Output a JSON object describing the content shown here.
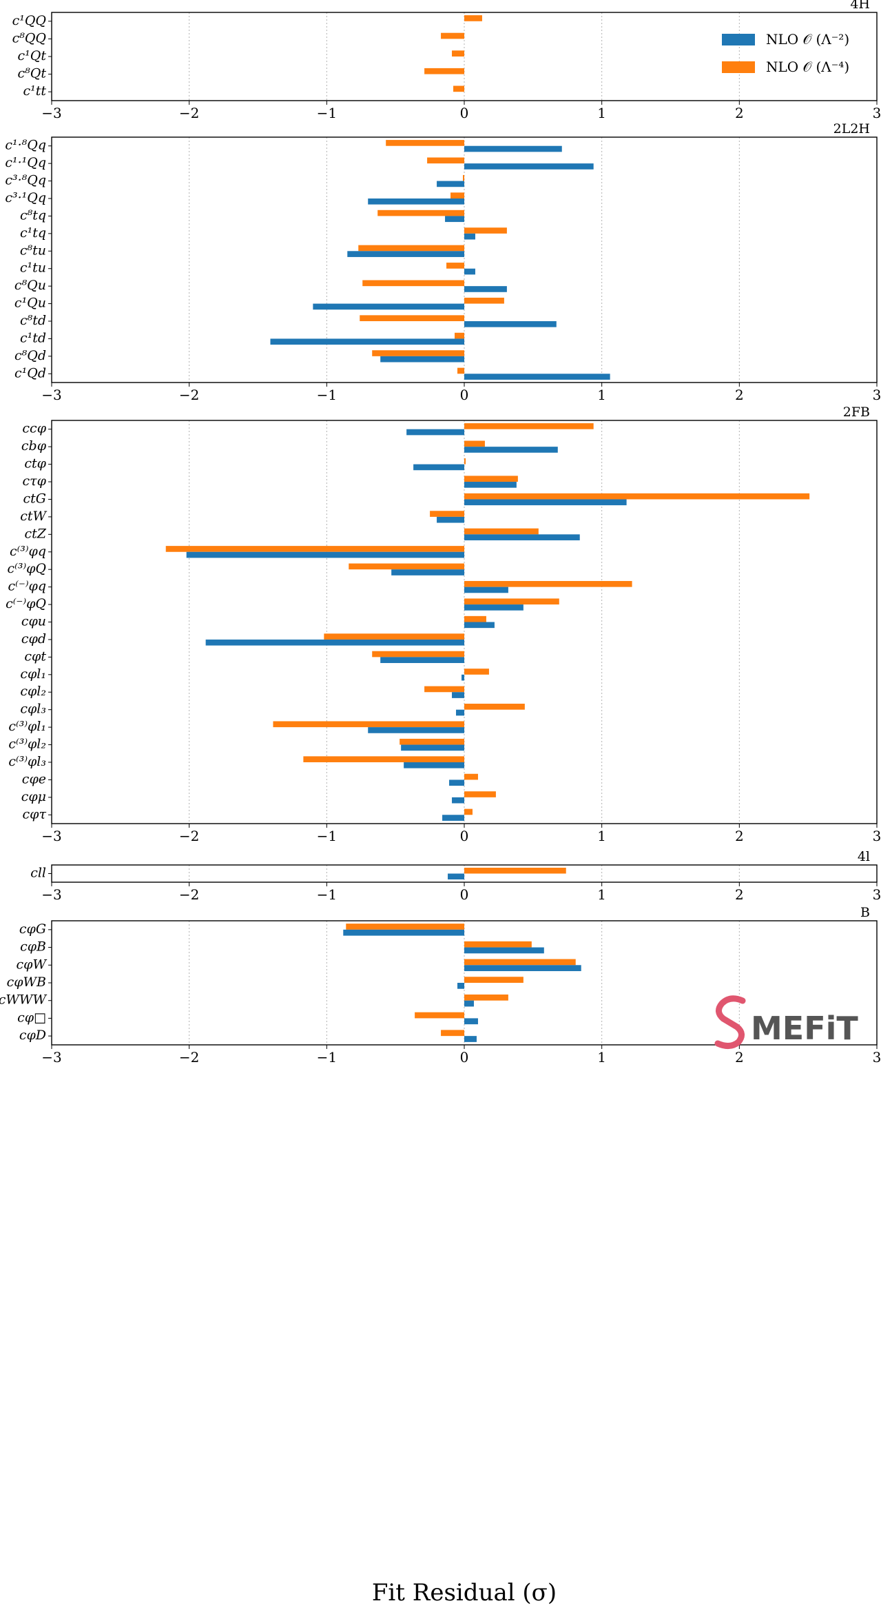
{
  "chart_data": {
    "type": "bar",
    "orientation": "horizontal",
    "xlabel": "Fit Residual (σ)",
    "xlim": [
      -3,
      3
    ],
    "xticks": [
      -3,
      -2,
      -1,
      0,
      1,
      2,
      3
    ],
    "xtick_labels": [
      "−3",
      "−2",
      "−1",
      "0",
      "1",
      "2",
      "3"
    ],
    "grid": "vertical dotted",
    "legend": {
      "placement": "top-right",
      "entries": [
        {
          "name": "NLO 𝒪 (Λ⁻²)",
          "color": "#1f77b4"
        },
        {
          "name": "NLO 𝒪 (Λ⁻⁴)",
          "color": "#ff7f0e"
        }
      ]
    },
    "colors": {
      "lambda2": "#1f77b4",
      "lambda4": "#ff7f0e"
    },
    "logo": {
      "text": "MEFiT",
      "icon": "smefit-s-icon",
      "color": "#e0566f"
    },
    "panels": [
      {
        "title": "4H",
        "categories": [
          "c¹QQ",
          "c⁸QQ",
          "c¹Qt",
          "c⁸Qt",
          "c¹tt"
        ],
        "series": [
          {
            "name": "NLO 𝒪 (Λ⁻²)",
            "values": [
              0,
              0,
              0,
              0,
              0
            ]
          },
          {
            "name": "NLO 𝒪 (Λ⁻⁴)",
            "values": [
              0.13,
              -0.17,
              -0.09,
              -0.29,
              -0.08
            ]
          }
        ]
      },
      {
        "title": "2L2H",
        "categories": [
          "c¹·⁸Qq",
          "c¹·¹Qq",
          "c³·⁸Qq",
          "c³·¹Qq",
          "c⁸tq",
          "c¹tq",
          "c⁸tu",
          "c¹tu",
          "c⁸Qu",
          "c¹Qu",
          "c⁸td",
          "c¹td",
          "c⁸Qd",
          "c¹Qd"
        ],
        "series": [
          {
            "name": "NLO 𝒪 (Λ⁻²)",
            "values": [
              0.71,
              0.94,
              -0.2,
              -0.7,
              -0.14,
              0.08,
              -0.85,
              0.08,
              0.31,
              -1.1,
              0.67,
              -1.41,
              -0.61,
              1.06
            ]
          },
          {
            "name": "NLO 𝒪 (Λ⁻⁴)",
            "values": [
              -0.57,
              -0.27,
              -0.01,
              -0.1,
              -0.63,
              0.31,
              -0.77,
              -0.13,
              -0.74,
              0.29,
              -0.76,
              -0.07,
              -0.67,
              -0.05
            ]
          }
        ]
      },
      {
        "title": "2FB",
        "categories": [
          "ccφ",
          "cbφ",
          "ctφ",
          "cτφ",
          "ctG",
          "ctW",
          "ctZ",
          "c⁽³⁾φq",
          "c⁽³⁾φQ",
          "c⁽⁻⁾φq",
          "c⁽⁻⁾φQ",
          "cφu",
          "cφd",
          "cφt",
          "cφl₁",
          "cφl₂",
          "cφl₃",
          "c⁽³⁾φl₁",
          "c⁽³⁾φl₂",
          "c⁽³⁾φl₃",
          "cφe",
          "cφμ",
          "cφτ"
        ],
        "series": [
          {
            "name": "NLO 𝒪 (Λ⁻²)",
            "values": [
              -0.42,
              0.68,
              -0.37,
              0.38,
              1.18,
              -0.2,
              0.84,
              -2.02,
              -0.53,
              0.32,
              0.43,
              0.22,
              -1.88,
              -0.61,
              -0.02,
              -0.09,
              -0.06,
              -0.7,
              -0.46,
              -0.44,
              -0.11,
              -0.09,
              -0.16
            ]
          },
          {
            "name": "NLO 𝒪 (Λ⁻⁴)",
            "values": [
              0.94,
              0.15,
              0.01,
              0.39,
              2.51,
              -0.25,
              0.54,
              -2.17,
              -0.84,
              1.22,
              0.69,
              0.16,
              -1.02,
              -0.67,
              0.18,
              -0.29,
              0.44,
              -1.39,
              -0.47,
              -1.17,
              0.1,
              0.23,
              0.06
            ]
          }
        ]
      },
      {
        "title": "4l",
        "categories": [
          "cll"
        ],
        "series": [
          {
            "name": "NLO 𝒪 (Λ⁻²)",
            "values": [
              -0.12
            ]
          },
          {
            "name": "NLO 𝒪 (Λ⁻⁴)",
            "values": [
              0.74
            ]
          }
        ]
      },
      {
        "title": "B",
        "categories": [
          "cφG",
          "cφB",
          "cφW",
          "cφWB",
          "cWWW",
          "cφ□",
          "cφD"
        ],
        "series": [
          {
            "name": "NLO 𝒪 (Λ⁻²)",
            "values": [
              -0.88,
              0.58,
              0.85,
              -0.05,
              0.07,
              0.1,
              0.09
            ]
          },
          {
            "name": "NLO 𝒪 (Λ⁻⁴)",
            "values": [
              -0.86,
              0.49,
              0.81,
              0.43,
              0.32,
              -0.36,
              -0.17
            ]
          }
        ]
      }
    ]
  }
}
